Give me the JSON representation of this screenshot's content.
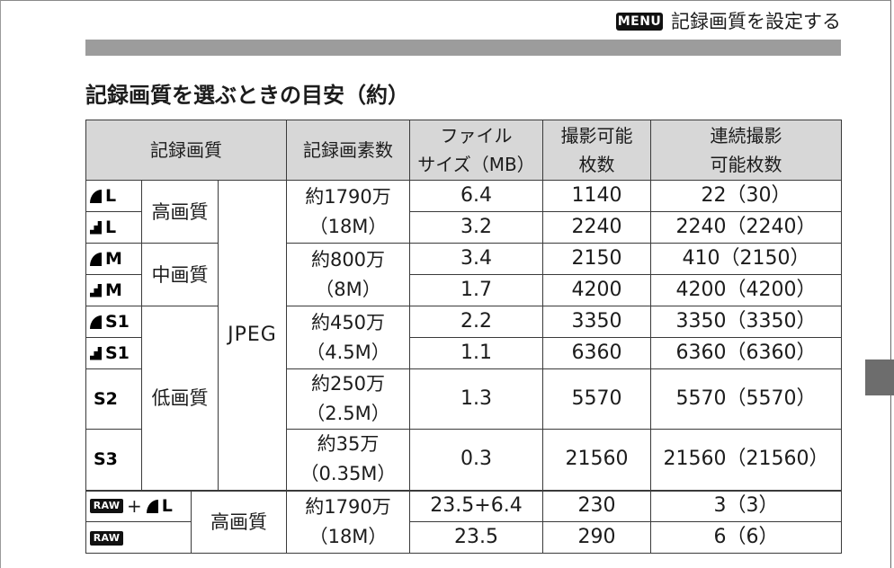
{
  "page_header": {
    "menu_icon_label": "MENU",
    "title": "記録画質を設定する"
  },
  "section_title": "記録画質を選ぶときの目安（約）",
  "table": {
    "headers": {
      "quality": "記録画質",
      "pixels": "記録画素数",
      "file_size": [
        "ファイル",
        "サイズ（MB）"
      ],
      "shots": [
        "撮影可能",
        "枚数"
      ],
      "burst": [
        "連続撮影",
        "可能枚数"
      ]
    },
    "quality_levels": [
      "高画質",
      "中画質",
      "低画質",
      "高画質"
    ],
    "format": "JPEG",
    "pixel_counts": [
      [
        "約1790万",
        "（18M）"
      ],
      [
        "約800万",
        "（8M）"
      ],
      [
        "約450万",
        "（4.5M）"
      ],
      [
        "約250万",
        "（2.5M）"
      ],
      [
        "約35万",
        "（0.35M）"
      ],
      [
        "約1790万",
        "（18M）"
      ]
    ],
    "rows": [
      {
        "quality_icon": "fine-quality-icon",
        "size": "L",
        "file_size": "6.4",
        "shots": "1140",
        "burst": "22（30）"
      },
      {
        "quality_icon": "normal-quality-icon",
        "size": "L",
        "file_size": "3.2",
        "shots": "2240",
        "burst": "2240（2240）"
      },
      {
        "quality_icon": "fine-quality-icon",
        "size": "M",
        "file_size": "3.4",
        "shots": "2150",
        "burst": "410（2150）"
      },
      {
        "quality_icon": "normal-quality-icon",
        "size": "M",
        "file_size": "1.7",
        "shots": "4200",
        "burst": "4200（4200）"
      },
      {
        "quality_icon": "fine-quality-icon",
        "size": "S1",
        "file_size": "2.2",
        "shots": "3350",
        "burst": "3350（3350）"
      },
      {
        "quality_icon": "normal-quality-icon",
        "size": "S1",
        "file_size": "1.1",
        "shots": "6360",
        "burst": "6360（6360）"
      },
      {
        "size": "S2",
        "file_size": "1.3",
        "shots": "5570",
        "burst": "5570（5570）"
      },
      {
        "size": "S3",
        "file_size": "0.3",
        "shots": "21560",
        "burst": "21560（21560）"
      },
      {
        "raw_label": "RAW",
        "plus": "+",
        "quality_icon": "fine-quality-icon",
        "size": "L",
        "file_size": "23.5+6.4",
        "shots": "230",
        "burst": "3（3）"
      },
      {
        "raw_label": "RAW",
        "file_size": "23.5",
        "shots": "290",
        "burst": "6（6）"
      }
    ]
  },
  "colors": {
    "rule_bar": "#9c9c9c",
    "table_header_bg": "#d7d7d7",
    "table_border": "#3a3a3a",
    "index_tab": "#6d6d6d"
  }
}
